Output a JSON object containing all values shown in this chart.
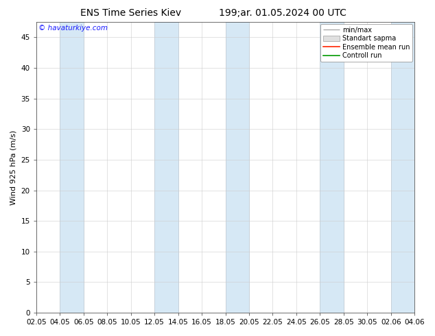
{
  "title_left": "ENS Time Series Kiev",
  "title_right": "199;ar. 01.05.2024 00 UTC",
  "ylabel": "Wind 925 hPa (m/s)",
  "watermark": "© havaturkiye.com",
  "watermark_color": "#1a1aff",
  "ylim": [
    0,
    47.5
  ],
  "yticks": [
    0,
    5,
    10,
    15,
    20,
    25,
    30,
    35,
    40,
    45
  ],
  "x_labels": [
    "02.05",
    "04.05",
    "06.05",
    "08.05",
    "10.05",
    "12.05",
    "14.05",
    "16.05",
    "18.05",
    "20.05",
    "22.05",
    "24.05",
    "26.05",
    "28.05",
    "30.05",
    "02.06",
    "04.06"
  ],
  "band_color": "#d6e8f5",
  "band_edge_color": "#b0cfe8",
  "background_color": "#ffffff",
  "legend_items": [
    "min/max",
    "Standart sapma",
    "Ensemble mean run",
    "Controll run"
  ],
  "legend_colors_line": [
    "#aaaaaa",
    "#cccccc",
    "#ff2200",
    "#009900"
  ],
  "title_fontsize": 10,
  "axis_fontsize": 8,
  "tick_fontsize": 7.5,
  "band_positions": [
    1,
    5,
    8,
    12,
    15
  ],
  "n_labels": 17
}
